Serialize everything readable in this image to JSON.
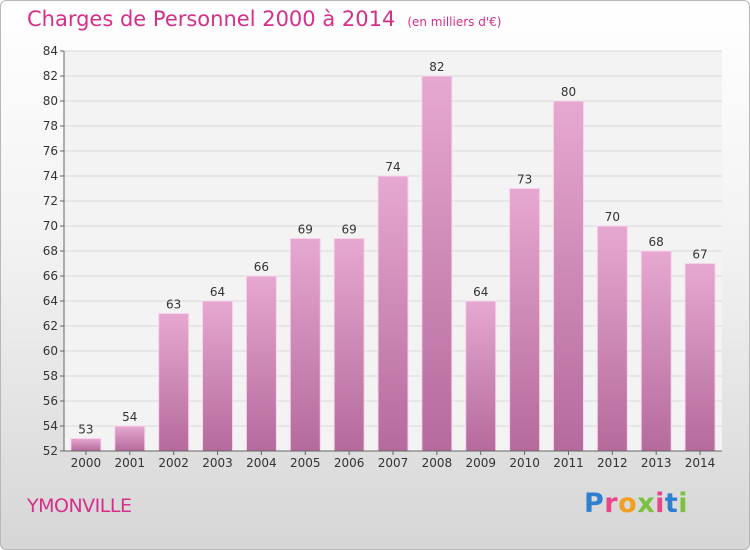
{
  "header": {
    "title": "Charges de Personnel 2000 à 2014",
    "subtitle": "(en milliers d'€)"
  },
  "footer": {
    "place": "YMONVILLE",
    "logo": "Proxiti"
  },
  "colors": {
    "accent": "#d62f8a",
    "bar_top": "#e6a8d0",
    "bar_bottom": "#b56a9c",
    "logo_letters": [
      "#2f7fd0",
      "#e8458a",
      "#f0a020",
      "#7ac142",
      "#e8458a",
      "#2f7fd0",
      "#7ac142"
    ]
  },
  "chart_data": {
    "type": "bar",
    "categories": [
      "2000",
      "2001",
      "2002",
      "2003",
      "2004",
      "2005",
      "2006",
      "2007",
      "2008",
      "2009",
      "2010",
      "2011",
      "2012",
      "2013",
      "2014"
    ],
    "values": [
      53,
      54,
      63,
      64,
      66,
      69,
      69,
      74,
      82,
      64,
      73,
      80,
      70,
      68,
      67
    ],
    "ylim": [
      52,
      84
    ],
    "yticks": [
      52,
      54,
      56,
      58,
      60,
      62,
      64,
      66,
      68,
      70,
      72,
      74,
      76,
      78,
      80,
      82,
      84
    ],
    "grid": true,
    "data_labels": true
  }
}
